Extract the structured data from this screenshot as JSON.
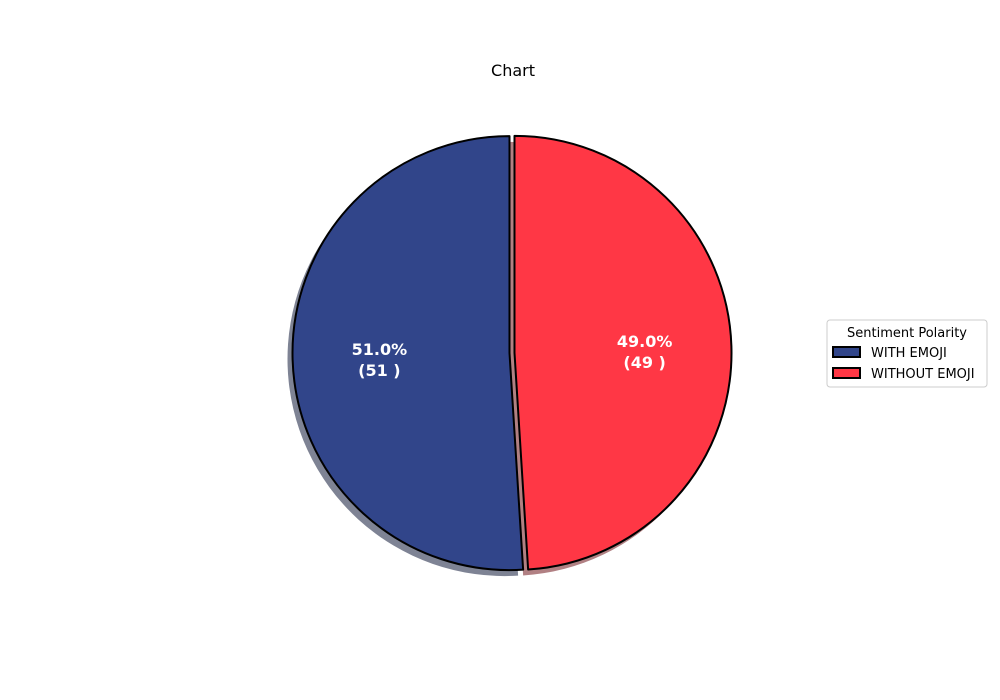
{
  "chart_data": {
    "type": "pie",
    "title": "Chart",
    "legend_title": "Sentiment Polarity",
    "legend_position": "center-right",
    "start_angle_deg": 90,
    "direction": "counterclockwise",
    "shadow": true,
    "slices": [
      {
        "label": "WITH EMOJI",
        "value": 51,
        "percent_text": "51.0%",
        "count_text": "(51 )",
        "color": "#31458a"
      },
      {
        "label": "WITHOUT EMOJI",
        "value": 49,
        "percent_text": "49.0%",
        "count_text": "(49 )",
        "color": "#ff3745"
      }
    ]
  }
}
